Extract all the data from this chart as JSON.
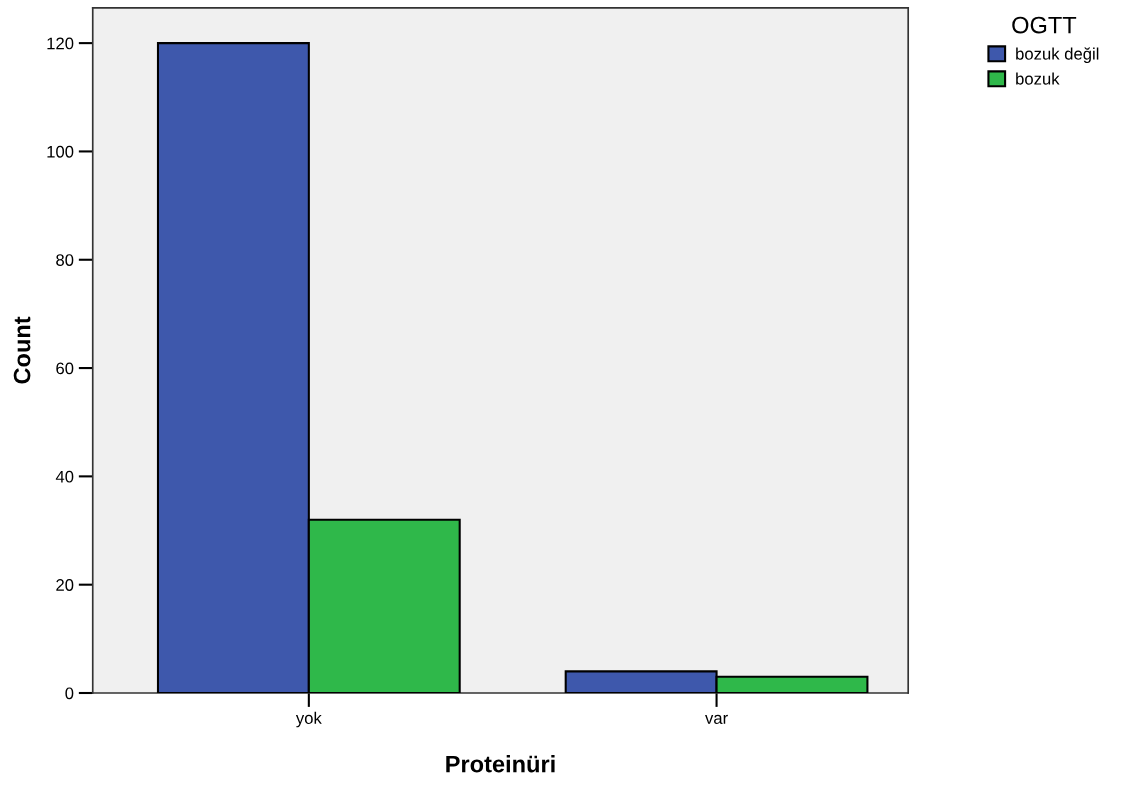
{
  "chart_data": {
    "type": "bar",
    "xlabel": "Proteinüri",
    "ylabel": "Count",
    "legend_title": "OGTT",
    "categories": [
      "yok",
      "var"
    ],
    "series": [
      {
        "name": "bozuk değil",
        "color": "#3e58ac",
        "values": [
          120,
          4
        ]
      },
      {
        "name": "bozuk",
        "color": "#2fb84a",
        "values": [
          32,
          3
        ]
      }
    ],
    "ylim": [
      0,
      126.5
    ],
    "yticks": [
      0,
      20,
      40,
      60,
      80,
      100,
      120
    ],
    "grid": false,
    "legend": "top right"
  }
}
